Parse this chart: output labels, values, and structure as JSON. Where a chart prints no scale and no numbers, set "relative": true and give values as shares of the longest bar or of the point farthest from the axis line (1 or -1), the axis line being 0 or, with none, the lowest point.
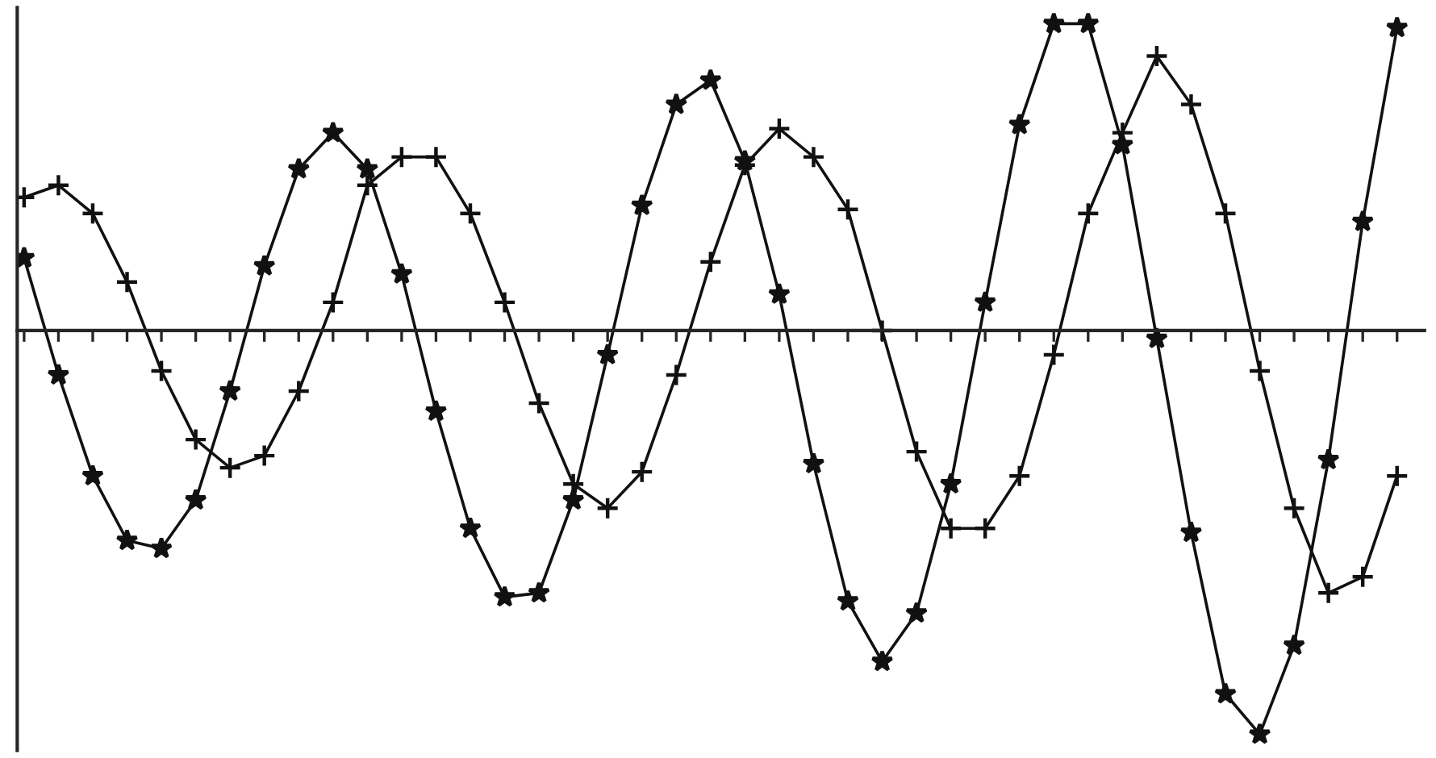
{
  "chart_data": {
    "type": "line",
    "relative": true,
    "grid": false,
    "legend": false,
    "categories": [
      null,
      null,
      null,
      null,
      null,
      null,
      null,
      null,
      null,
      null,
      null,
      null,
      null,
      null,
      null,
      null,
      null,
      null,
      null,
      null,
      null,
      null,
      null,
      null,
      null,
      null,
      null,
      null,
      null,
      null,
      null,
      null,
      null,
      null,
      null,
      null,
      null,
      null,
      null,
      null,
      null
    ],
    "series": [
      {
        "color": "#111111",
        "marker": "star",
        "values": [
          0.18,
          -0.11,
          -0.36,
          -0.52,
          -0.54,
          -0.42,
          -0.15,
          0.16,
          0.4,
          0.49,
          0.4,
          0.14,
          -0.2,
          -0.49,
          -0.66,
          -0.65,
          -0.42,
          -0.06,
          0.31,
          0.56,
          0.62,
          0.42,
          0.09,
          -0.33,
          -0.67,
          -0.82,
          -0.7,
          -0.38,
          0.07,
          0.51,
          0.76,
          0.76,
          0.46,
          -0.02,
          -0.5,
          -0.9,
          -1,
          -0.78,
          -0.32,
          0.27,
          0.75
        ]
      },
      {
        "color": "#111111",
        "marker": "cross",
        "values": [
          0.33,
          0.36,
          0.29,
          0.12,
          -0.1,
          -0.27,
          -0.34,
          -0.31,
          -0.15,
          0.07,
          0.36,
          0.43,
          0.43,
          0.29,
          0.07,
          -0.18,
          -0.38,
          -0.44,
          -0.35,
          -0.11,
          0.17,
          0.41,
          0.5,
          0.43,
          0.3,
          0,
          -0.3,
          -0.49,
          -0.49,
          -0.36,
          -0.06,
          0.29,
          0.49,
          0.68,
          0.56,
          0.29,
          -0.1,
          -0.44,
          -0.65,
          -0.61,
          -0.36
        ]
      }
    ]
  }
}
